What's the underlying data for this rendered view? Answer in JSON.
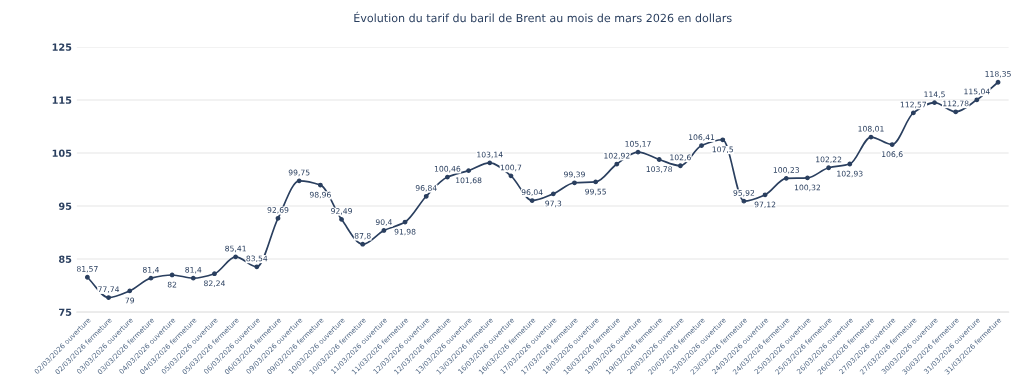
{
  "chart_data": {
    "type": "line",
    "title": "Évolution du tarif du baril de Brent au mois de mars 2026 en dollars",
    "categories": [
      "02/03/2026 ouverture",
      "02/03/2026 fermeture",
      "03/03/2026 ouverture",
      "03/03/2026 fermeture",
      "04/03/2026 ouverture",
      "04/03/2026 fermeture",
      "05/03/2026 ouverture",
      "05/03/2026 fermeture",
      "06/03/2026 ouverture",
      "06/03/2026 fermeture",
      "09/03/2026 ouverture",
      "09/03/2026 fermeture",
      "10/03/2026 ouverture",
      "10/03/2026 fermeture",
      "11/03/2026 ouverture",
      "11/03/2026 fermeture",
      "12/03/2026 ouverture",
      "12/03/2026 fermeture",
      "13/03/2026 ouverture",
      "13/03/2026 fermeture",
      "16/03/2026 ouverture",
      "16/03/2026 fermeture",
      "17/03/2026 ouverture",
      "17/03/2026 fermeture",
      "18/03/2026 ouverture",
      "18/03/2026 fermeture",
      "19/03/2026 ouverture",
      "19/03/2026 fermeture",
      "20/03/2026 ouverture",
      "20/03/2026 fermeture",
      "23/03/2026 ouverture",
      "23/03/2026 fermeture",
      "24/03/2026 ouverture",
      "24/03/2026 fermeture",
      "25/03/2026 ouverture",
      "25/03/2026 fermeture",
      "26/03/2026 ouverture",
      "26/03/2026 fermeture",
      "27/03/2026 ouverture",
      "27/03/2026 fermeture",
      "30/03/2026 ouverture",
      "30/03/2026 fermeture",
      "31/03/2026 ouverture",
      "31/03/2026 fermeture"
    ],
    "series": [
      {
        "color": "#2a3f5f",
        "values": [
          81.57,
          77.74,
          79,
          81.4,
          82,
          81.4,
          82.24,
          85.41,
          83.54,
          92.69,
          99.75,
          98.96,
          92.49,
          87.8,
          90.4,
          91.98,
          96.84,
          100.46,
          101.68,
          103.14,
          100.7,
          96.04,
          97.3,
          99.39,
          99.55,
          102.92,
          105.17,
          103.78,
          102.6,
          106.41,
          107.5,
          95.92,
          97.12,
          100.23,
          100.32,
          102.22,
          102.93,
          108.01,
          106.6,
          112.57,
          114.5,
          112.78,
          115.04,
          118.35
        ],
        "value_labels": [
          "81,57",
          "77,74",
          "79",
          "81,4",
          "82",
          "81,4",
          "82,24",
          "85,41",
          "83,54",
          "92,69",
          "99,75",
          "98,96",
          "92,49",
          "87,8",
          "90,4",
          "91,98",
          "96,84",
          "100,46",
          "101,68",
          "103,14",
          "100,7",
          "96,04",
          "97,3",
          "99,39",
          "99,55",
          "102,92",
          "105,17",
          "103,78",
          "102,6",
          "106,41",
          "107,5",
          "95,92",
          "97,12",
          "100,23",
          "100,32",
          "102,22",
          "102,93",
          "108,01",
          "106,6",
          "112,57",
          "114,5",
          "112,78",
          "115,04",
          "118,35"
        ]
      }
    ],
    "ylim": [
      75,
      125
    ],
    "yticks": [
      75,
      85,
      95,
      105,
      115,
      125
    ],
    "grid": "y",
    "marker": "circle",
    "line_style": "solid"
  }
}
